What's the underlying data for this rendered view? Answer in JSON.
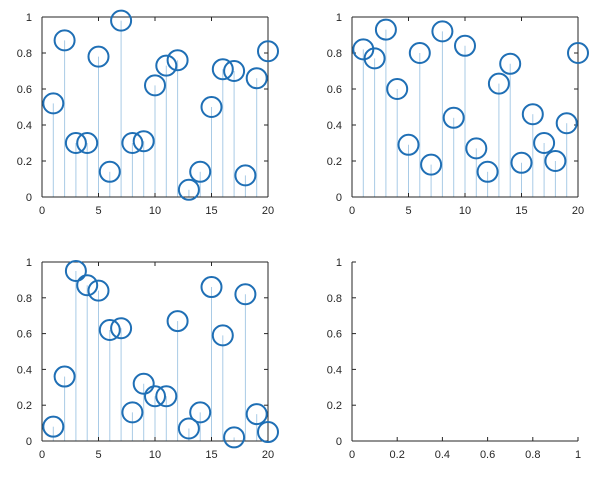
{
  "figure": {
    "background": "#ffffff",
    "axis_color": "#262626"
  },
  "chart_data": [
    {
      "type": "stem",
      "marker": "open-circle",
      "color": "#1f6fb5",
      "stem_color": "#a9cbe6",
      "box": true,
      "xlim": [
        0,
        20
      ],
      "ylim": [
        0,
        1
      ],
      "xticks": [
        0,
        5,
        10,
        15,
        20
      ],
      "yticks": [
        0,
        0.2,
        0.4,
        0.6,
        0.8,
        1
      ],
      "xtick_labels": [
        "0",
        "5",
        "10",
        "15",
        "20"
      ],
      "ytick_labels": [
        "0",
        "0.2",
        "0.4",
        "0.6",
        "0.8",
        "1"
      ],
      "x": [
        1,
        2,
        3,
        4,
        5,
        6,
        7,
        8,
        9,
        10,
        11,
        12,
        13,
        14,
        15,
        16,
        17,
        18,
        19,
        20
      ],
      "y": [
        0.52,
        0.87,
        0.3,
        0.3,
        0.78,
        0.14,
        0.98,
        0.3,
        0.31,
        0.62,
        0.73,
        0.76,
        0.04,
        0.14,
        0.5,
        0.71,
        0.7,
        0.12,
        0.66,
        0.81
      ]
    },
    {
      "type": "stem",
      "marker": "open-circle",
      "color": "#1f6fb5",
      "stem_color": "#a9cbe6",
      "box": true,
      "xlim": [
        0,
        20
      ],
      "ylim": [
        0,
        1
      ],
      "xticks": [
        0,
        5,
        10,
        15,
        20
      ],
      "yticks": [
        0,
        0.2,
        0.4,
        0.6,
        0.8,
        1
      ],
      "xtick_labels": [
        "0",
        "5",
        "10",
        "15",
        "20"
      ],
      "ytick_labels": [
        "0",
        "0.2",
        "0.4",
        "0.6",
        "0.8",
        "1"
      ],
      "x": [
        1,
        2,
        3,
        4,
        5,
        6,
        7,
        8,
        9,
        10,
        11,
        12,
        13,
        14,
        15,
        16,
        17,
        18,
        19,
        20
      ],
      "y": [
        0.82,
        0.77,
        0.93,
        0.6,
        0.29,
        0.8,
        0.18,
        0.92,
        0.44,
        0.84,
        0.27,
        0.14,
        0.63,
        0.74,
        0.19,
        0.46,
        0.3,
        0.2,
        0.41,
        0.8
      ]
    },
    {
      "type": "stem",
      "marker": "open-circle",
      "color": "#1f6fb5",
      "stem_color": "#a9cbe6",
      "box": true,
      "xlim": [
        0,
        20
      ],
      "ylim": [
        0,
        1
      ],
      "xticks": [
        0,
        5,
        10,
        15,
        20
      ],
      "yticks": [
        0,
        0.2,
        0.4,
        0.6,
        0.8,
        1
      ],
      "xtick_labels": [
        "0",
        "5",
        "10",
        "15",
        "20"
      ],
      "ytick_labels": [
        "0",
        "0.2",
        "0.4",
        "0.6",
        "0.8",
        "1"
      ],
      "x": [
        1,
        2,
        3,
        4,
        5,
        6,
        7,
        8,
        9,
        10,
        11,
        12,
        13,
        14,
        15,
        16,
        17,
        18,
        19,
        20
      ],
      "y": [
        0.08,
        0.36,
        0.95,
        0.87,
        0.84,
        0.62,
        0.63,
        0.16,
        0.32,
        0.25,
        0.25,
        0.67,
        0.07,
        0.16,
        0.86,
        0.59,
        0.02,
        0.82,
        0.15,
        0.05
      ]
    },
    {
      "type": "empty",
      "box": false,
      "xlim": [
        0,
        1
      ],
      "ylim": [
        0,
        1
      ],
      "xticks": [
        0,
        0.2,
        0.4,
        0.6,
        0.8,
        1
      ],
      "yticks": [
        0,
        0.2,
        0.4,
        0.6,
        0.8,
        1
      ],
      "xtick_labels": [
        "0",
        "0.2",
        "0.4",
        "0.6",
        "0.8",
        "1"
      ],
      "ytick_labels": [
        "0",
        "0.2",
        "0.4",
        "0.6",
        "0.8",
        "1"
      ],
      "x": [],
      "y": []
    }
  ]
}
